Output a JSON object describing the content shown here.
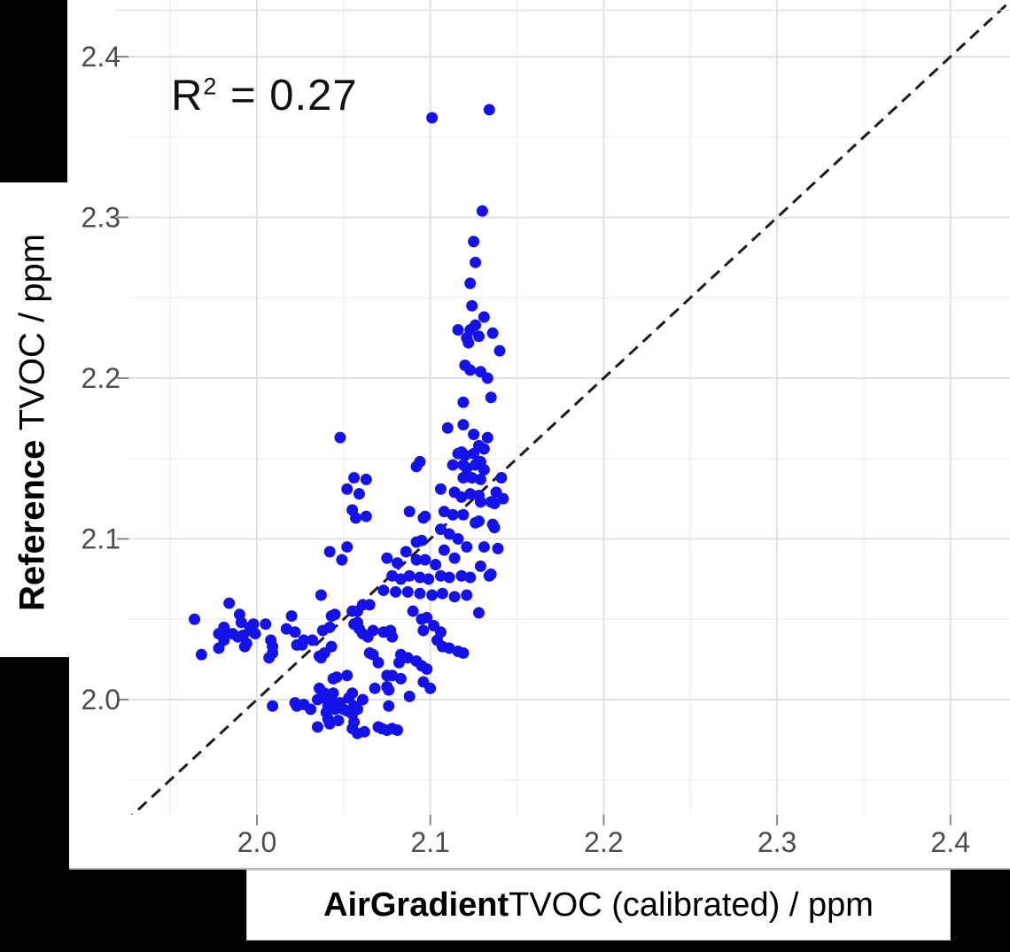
{
  "annotation": {
    "base": "R",
    "sup": "2",
    "rest": " = 0.27"
  },
  "x_axis": {
    "title_bold": "AirGradient",
    "title_rest": " TVOC (calibrated) / ppm",
    "tick_labels": [
      "2.0",
      "2.1",
      "2.2",
      "2.3",
      "2.4"
    ],
    "tick_values": [
      2.0,
      2.1,
      2.2,
      2.3,
      2.4
    ]
  },
  "y_axis": {
    "title_bold": "Reference",
    "title_rest": " TVOC / ppm",
    "tick_labels": [
      "2.0",
      "2.1",
      "2.2",
      "2.3",
      "2.4"
    ],
    "tick_values": [
      2.0,
      2.1,
      2.2,
      2.3,
      2.4
    ]
  },
  "colors": {
    "point": "#1512e9",
    "grid_major": "#e2e2e2",
    "grid_minor": "#f0f0f0",
    "tick_mark": "#888888",
    "tick_label": "#4d4d4d",
    "identity_line": "#1c1c1c"
  },
  "chart_data": {
    "type": "scatter",
    "title": "",
    "xlabel": "AirGradient TVOC (calibrated) / ppm",
    "ylabel": "Reference TVOC / ppm",
    "annotation": "R² = 0.27",
    "xlim": [
      1.926,
      2.435
    ],
    "ylim": [
      1.928,
      2.435
    ],
    "grid": true,
    "legend": false,
    "major_ticks": [
      2.0,
      2.1,
      2.2,
      2.3,
      2.4
    ],
    "minor_ticks": [
      1.95,
      2.05,
      2.15,
      2.25,
      2.35,
      2.45
    ],
    "identity_line": {
      "style": "dashed",
      "from": 1.9,
      "to": 2.45
    },
    "points": [
      [
        1.964,
        2.05
      ],
      [
        1.968,
        2.028
      ],
      [
        1.978,
        2.041
      ],
      [
        1.978,
        2.032
      ],
      [
        1.981,
        2.045
      ],
      [
        1.981,
        2.037
      ],
      [
        1.983,
        2.041
      ],
      [
        1.984,
        2.06
      ],
      [
        1.986,
        2.041
      ],
      [
        1.989,
        2.039
      ],
      [
        1.99,
        2.053
      ],
      [
        1.991,
        2.048
      ],
      [
        1.992,
        2.04
      ],
      [
        1.993,
        2.033
      ],
      [
        1.994,
        2.035
      ],
      [
        1.996,
        2.043
      ],
      [
        1.996,
        2.045
      ],
      [
        1.998,
        2.047
      ],
      [
        1.999,
        2.041
      ],
      [
        2.005,
        2.047
      ],
      [
        2.007,
        2.026
      ],
      [
        2.008,
        2.037
      ],
      [
        2.009,
        2.033
      ],
      [
        2.009,
        2.029
      ],
      [
        2.009,
        1.996
      ],
      [
        2.017,
        2.044
      ],
      [
        2.02,
        2.052
      ],
      [
        2.022,
        2.042
      ],
      [
        2.022,
        1.998
      ],
      [
        2.023,
        2.034
      ],
      [
        2.023,
        1.996
      ],
      [
        2.026,
        2.034
      ],
      [
        2.027,
        2.037
      ],
      [
        2.027,
        1.997
      ],
      [
        2.031,
        1.994
      ],
      [
        2.032,
        2.037
      ],
      [
        2.035,
        2.0
      ],
      [
        2.035,
        1.983
      ],
      [
        2.036,
        2.027
      ],
      [
        2.036,
        2.007
      ],
      [
        2.037,
        2.065
      ],
      [
        2.037,
        2.026
      ],
      [
        2.038,
        2.043
      ],
      [
        2.039,
        2.029
      ],
      [
        2.039,
        2.004
      ],
      [
        2.039,
        2.001
      ],
      [
        2.04,
        1.992
      ],
      [
        2.041,
        1.996
      ],
      [
        2.041,
        1.988
      ],
      [
        2.042,
        2.045
      ],
      [
        2.042,
        1.985
      ],
      [
        2.043,
        2.052
      ],
      [
        2.043,
        2.033
      ],
      [
        2.043,
        2.0
      ],
      [
        2.044,
        2.013
      ],
      [
        2.044,
        2.004
      ],
      [
        2.045,
        2.053
      ],
      [
        2.046,
        2.014
      ],
      [
        2.045,
        1.994
      ],
      [
        2.047,
        1.987
      ],
      [
        2.048,
        1.998
      ],
      [
        2.05,
        1.994
      ],
      [
        2.052,
        2.015
      ],
      [
        2.052,
        1.993
      ],
      [
        2.053,
        2.001
      ],
      [
        2.055,
        2.055
      ],
      [
        2.055,
        2.004
      ],
      [
        2.055,
        1.991
      ],
      [
        2.055,
        1.982
      ],
      [
        2.056,
        2.047
      ],
      [
        2.056,
        1.996
      ],
      [
        2.056,
        1.986
      ],
      [
        2.058,
        2.055
      ],
      [
        2.058,
        2.048
      ],
      [
        2.058,
        1.994
      ],
      [
        2.058,
        1.979
      ],
      [
        2.059,
        2.044
      ],
      [
        2.061,
        2.059
      ],
      [
        2.061,
        2.041
      ],
      [
        2.061,
        2.0
      ],
      [
        2.062,
        1.98
      ],
      [
        2.064,
        2.039
      ],
      [
        2.065,
        2.059
      ],
      [
        2.065,
        2.029
      ],
      [
        2.067,
        2.028
      ],
      [
        2.067,
        2.043
      ],
      [
        2.068,
        2.007
      ],
      [
        2.07,
        2.023
      ],
      [
        2.07,
        1.983
      ],
      [
        2.072,
        1.982
      ],
      [
        2.073,
        2.042
      ],
      [
        2.075,
        2.015
      ],
      [
        2.075,
        2.008
      ],
      [
        2.075,
        1.981
      ],
      [
        2.076,
        2.006
      ],
      [
        2.076,
        1.996
      ],
      [
        2.077,
        2.043
      ],
      [
        2.078,
        2.039
      ],
      [
        2.078,
        2.015
      ],
      [
        2.078,
        1.982
      ],
      [
        2.081,
        1.981
      ],
      [
        2.082,
        2.023
      ],
      [
        2.083,
        2.028
      ],
      [
        2.083,
        2.013
      ],
      [
        2.087,
        2.026
      ],
      [
        2.088,
        2.002
      ],
      [
        2.09,
        2.055
      ],
      [
        2.092,
        2.024
      ],
      [
        2.095,
        2.05
      ],
      [
        2.095,
        2.021
      ],
      [
        2.096,
        2.011
      ],
      [
        2.096,
        2.043
      ],
      [
        2.098,
        2.051
      ],
      [
        2.098,
        2.019
      ],
      [
        2.1,
        2.007
      ],
      [
        2.102,
        2.046
      ],
      [
        2.104,
        2.037
      ],
      [
        2.106,
        2.042
      ],
      [
        2.107,
        2.033
      ],
      [
        2.111,
        2.032
      ],
      [
        2.116,
        2.03
      ],
      [
        2.119,
        2.029
      ],
      [
        2.128,
        2.054
      ],
      [
        2.048,
        2.163
      ],
      [
        2.056,
        2.138
      ],
      [
        2.063,
        2.137
      ],
      [
        2.052,
        2.131
      ],
      [
        2.059,
        2.128
      ],
      [
        2.055,
        2.118
      ],
      [
        2.057,
        2.113
      ],
      [
        2.063,
        2.114
      ],
      [
        2.042,
        2.092
      ],
      [
        2.052,
        2.095
      ],
      [
        2.049,
        2.087
      ],
      [
        2.075,
        2.088
      ],
      [
        2.081,
        2.085
      ],
      [
        2.086,
        2.092
      ],
      [
        2.092,
        2.087
      ],
      [
        2.097,
        2.087
      ],
      [
        2.103,
        2.084
      ],
      [
        2.108,
        2.093
      ],
      [
        2.114,
        2.088
      ],
      [
        2.078,
        2.077
      ],
      [
        2.083,
        2.075
      ],
      [
        2.088,
        2.077
      ],
      [
        2.094,
        2.076
      ],
      [
        2.099,
        2.075
      ],
      [
        2.106,
        2.077
      ],
      [
        2.111,
        2.076
      ],
      [
        2.118,
        2.077
      ],
      [
        2.123,
        2.076
      ],
      [
        2.129,
        2.083
      ],
      [
        2.073,
        2.068
      ],
      [
        2.08,
        2.067
      ],
      [
        2.087,
        2.067
      ],
      [
        2.094,
        2.066
      ],
      [
        2.101,
        2.065
      ],
      [
        2.107,
        2.066
      ],
      [
        2.114,
        2.064
      ],
      [
        2.121,
        2.065
      ],
      [
        2.134,
        2.077
      ],
      [
        2.139,
        2.094
      ],
      [
        2.095,
        2.099
      ],
      [
        2.106,
        2.106
      ],
      [
        2.111,
        2.103
      ],
      [
        2.116,
        2.1
      ],
      [
        2.121,
        2.095
      ],
      [
        2.131,
        2.095
      ],
      [
        2.092,
        2.098
      ],
      [
        2.135,
        2.078
      ],
      [
        2.092,
        2.145
      ],
      [
        2.113,
        2.146
      ],
      [
        2.121,
        2.144
      ],
      [
        2.126,
        2.146
      ],
      [
        2.131,
        2.143
      ],
      [
        2.094,
        2.148
      ],
      [
        2.119,
        2.146
      ],
      [
        2.129,
        2.148
      ],
      [
        2.119,
        2.138
      ],
      [
        2.124,
        2.138
      ],
      [
        2.129,
        2.137
      ],
      [
        2.141,
        2.138
      ],
      [
        2.106,
        2.131
      ],
      [
        2.114,
        2.129
      ],
      [
        2.118,
        2.126
      ],
      [
        2.123,
        2.128
      ],
      [
        2.128,
        2.127
      ],
      [
        2.138,
        2.129
      ],
      [
        2.142,
        2.125
      ],
      [
        2.135,
        2.123
      ],
      [
        2.129,
        2.123
      ],
      [
        2.137,
        2.122
      ],
      [
        2.088,
        2.117
      ],
      [
        2.097,
        2.114
      ],
      [
        2.108,
        2.117
      ],
      [
        2.113,
        2.115
      ],
      [
        2.119,
        2.115
      ],
      [
        2.126,
        2.11
      ],
      [
        2.136,
        2.109
      ],
      [
        2.128,
        2.111
      ],
      [
        2.137,
        2.107
      ],
      [
        2.096,
        2.113
      ],
      [
        2.124,
        2.245
      ],
      [
        2.131,
        2.238
      ],
      [
        2.116,
        2.23
      ],
      [
        2.123,
        2.23
      ],
      [
        2.126,
        2.233
      ],
      [
        2.121,
        2.225
      ],
      [
        2.128,
        2.226
      ],
      [
        2.136,
        2.228
      ],
      [
        2.122,
        2.222
      ],
      [
        2.14,
        2.217
      ],
      [
        2.12,
        2.208
      ],
      [
        2.123,
        2.205
      ],
      [
        2.129,
        2.204
      ],
      [
        2.133,
        2.2
      ],
      [
        2.119,
        2.185
      ],
      [
        2.135,
        2.188
      ],
      [
        2.11,
        2.169
      ],
      [
        2.119,
        2.171
      ],
      [
        2.125,
        2.165
      ],
      [
        2.133,
        2.163
      ],
      [
        2.128,
        2.158
      ],
      [
        2.131,
        2.156
      ],
      [
        2.116,
        2.153
      ],
      [
        2.12,
        2.152
      ],
      [
        2.125,
        2.153
      ],
      [
        2.118,
        2.154
      ],
      [
        2.13,
        2.304
      ],
      [
        2.125,
        2.285
      ],
      [
        2.126,
        2.272
      ],
      [
        2.123,
        2.259
      ],
      [
        2.101,
        2.362
      ],
      [
        2.134,
        2.367
      ]
    ]
  }
}
